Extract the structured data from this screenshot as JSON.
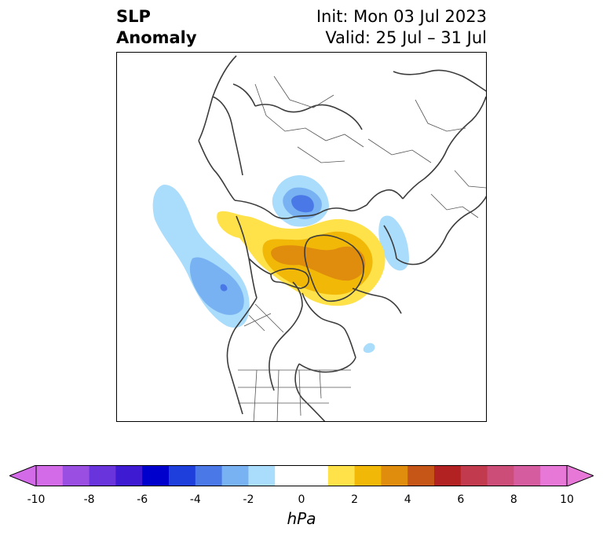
{
  "title": {
    "left_line1": "SLP",
    "left_line2": "Anomaly",
    "right_line1": "Init: Mon 03 Jul 2023",
    "right_line2": "Valid: 25 Jul – 31 Jul"
  },
  "colorbar": {
    "units": "hPa",
    "ticks": [
      "-10",
      "-8",
      "-6",
      "-4",
      "-2",
      "0",
      "2",
      "4",
      "6",
      "8",
      "10"
    ],
    "colors": [
      "#d36ae8",
      "#9b4fe2",
      "#6a34dc",
      "#3f1ad3",
      "#0000cc",
      "#1f3fdc",
      "#4a78e6",
      "#78b2f2",
      "#aadcfb",
      "#ffffff",
      "#ffffff",
      "#ffe14a",
      "#f2b808",
      "#e08c0c",
      "#c65518",
      "#b22222",
      "#c23a4e",
      "#cc4d77",
      "#d65ca0",
      "#e878d8"
    ],
    "extend_min_color": "#d36ae8",
    "extend_max_color": "#e878d8"
  }
}
